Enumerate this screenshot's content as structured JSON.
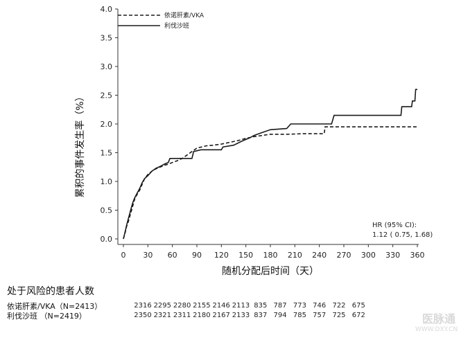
{
  "chart_data": {
    "type": "line",
    "title": "",
    "xlabel": "随机分配后时间（天）",
    "ylabel": "累积的事件发生率（%）",
    "xlim": [
      0,
      360
    ],
    "ylim": [
      0,
      4.0
    ],
    "x_ticks": [
      0,
      30,
      60,
      90,
      120,
      150,
      180,
      210,
      240,
      270,
      300,
      330,
      360
    ],
    "y_ticks": [
      0.0,
      0.5,
      1.0,
      1.5,
      2.0,
      2.5,
      3.0,
      3.5,
      4.0
    ],
    "y_tick_labels": [
      "0.0",
      "0.5",
      "1.0",
      "1.5",
      "2.0",
      "2.5",
      "3.0",
      "3.5",
      "4.0"
    ],
    "grid": false,
    "legend_position": "top-left",
    "series": [
      {
        "name": "依诺肝素/VKA",
        "style": "dashed",
        "color": "#1a1a1a",
        "points": [
          [
            0,
            0
          ],
          [
            2,
            0.1
          ],
          [
            4,
            0.22
          ],
          [
            6,
            0.3
          ],
          [
            8,
            0.4
          ],
          [
            10,
            0.5
          ],
          [
            12,
            0.6
          ],
          [
            14,
            0.7
          ],
          [
            17,
            0.78
          ],
          [
            20,
            0.85
          ],
          [
            23,
            0.95
          ],
          [
            26,
            1.05
          ],
          [
            30,
            1.12
          ],
          [
            35,
            1.18
          ],
          [
            40,
            1.22
          ],
          [
            45,
            1.25
          ],
          [
            50,
            1.28
          ],
          [
            55,
            1.3
          ],
          [
            60,
            1.33
          ],
          [
            66,
            1.36
          ],
          [
            72,
            1.4
          ],
          [
            78,
            1.46
          ],
          [
            84,
            1.52
          ],
          [
            90,
            1.58
          ],
          [
            96,
            1.6
          ],
          [
            102,
            1.62
          ],
          [
            110,
            1.63
          ],
          [
            120,
            1.65
          ],
          [
            130,
            1.68
          ],
          [
            140,
            1.71
          ],
          [
            150,
            1.75
          ],
          [
            160,
            1.78
          ],
          [
            170,
            1.8
          ],
          [
            180,
            1.82
          ],
          [
            200,
            1.82
          ],
          [
            220,
            1.83
          ],
          [
            240,
            1.83
          ],
          [
            246,
            1.83
          ],
          [
            247,
            1.95
          ],
          [
            360,
            1.95
          ]
        ]
      },
      {
        "name": "利伐沙班",
        "style": "solid",
        "color": "#1a1a1a",
        "points": [
          [
            0,
            0
          ],
          [
            2,
            0.12
          ],
          [
            4,
            0.24
          ],
          [
            6,
            0.35
          ],
          [
            8,
            0.45
          ],
          [
            10,
            0.56
          ],
          [
            12,
            0.65
          ],
          [
            14,
            0.72
          ],
          [
            17,
            0.8
          ],
          [
            20,
            0.88
          ],
          [
            23,
            0.98
          ],
          [
            26,
            1.05
          ],
          [
            30,
            1.1
          ],
          [
            35,
            1.18
          ],
          [
            40,
            1.23
          ],
          [
            45,
            1.26
          ],
          [
            50,
            1.3
          ],
          [
            55,
            1.33
          ],
          [
            57,
            1.4
          ],
          [
            84,
            1.4
          ],
          [
            86,
            1.52
          ],
          [
            95,
            1.55
          ],
          [
            120,
            1.55
          ],
          [
            122,
            1.6
          ],
          [
            135,
            1.63
          ],
          [
            145,
            1.7
          ],
          [
            155,
            1.76
          ],
          [
            160,
            1.8
          ],
          [
            170,
            1.85
          ],
          [
            180,
            1.9
          ],
          [
            200,
            1.92
          ],
          [
            205,
            2.0
          ],
          [
            255,
            2.0
          ],
          [
            258,
            2.15
          ],
          [
            340,
            2.15
          ],
          [
            341,
            2.3
          ],
          [
            353,
            2.3
          ],
          [
            354,
            2.4
          ],
          [
            357,
            2.4
          ],
          [
            358,
            2.6
          ],
          [
            360,
            2.6
          ]
        ]
      }
    ],
    "annotations": [
      {
        "text": "HR (95% CI):"
      },
      {
        "text": "1.12 ( 0.75,  1.68)"
      }
    ]
  },
  "risk_table": {
    "title": "处于风险的患者人数",
    "rows": [
      {
        "label": "依诺肝素/VKA（N=2413）",
        "values": [
          "2316",
          "2295",
          "2280",
          "2155",
          "2146",
          "2113",
          "835",
          "787",
          "773",
          "746",
          "722",
          "675"
        ]
      },
      {
        "label": "利伐沙班 （N=2419）",
        "values": [
          "2350",
          "2321",
          "2311",
          "2180",
          "2167",
          "2133",
          "837",
          "794",
          "785",
          "757",
          "725",
          "672"
        ]
      }
    ]
  },
  "watermark": {
    "main": "医脉通",
    "sub": "WWW.DXY.CN"
  }
}
